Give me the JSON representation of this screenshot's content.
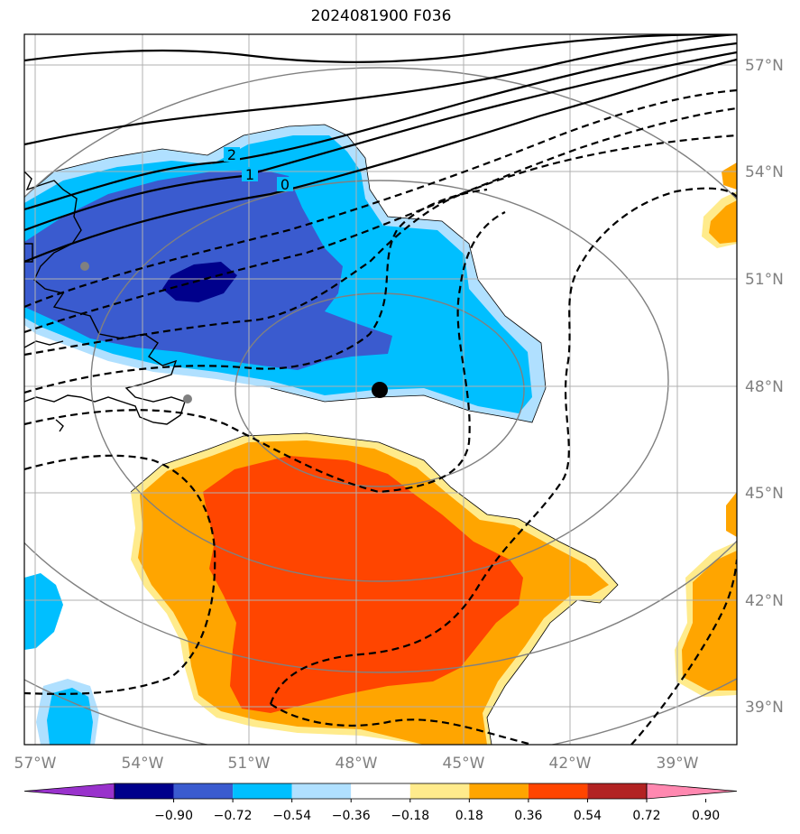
{
  "title": "2024081900 F036",
  "map": {
    "projection": "lambert-like",
    "longitude_labels": [
      "57°W",
      "54°W",
      "51°W",
      "48°W",
      "45°W",
      "42°W",
      "39°W"
    ],
    "latitude_labels": [
      "57°N",
      "54°N",
      "51°N",
      "48°N",
      "45°N",
      "42°N",
      "39°N"
    ],
    "center_marker": {
      "lon": -47.3,
      "lat": 48.0,
      "color": "#000000"
    },
    "grey_markers": [
      {
        "name": "st-johns-area"
      },
      {
        "name": "avalon-area"
      }
    ],
    "contour_labels": [
      "2",
      "1",
      "0"
    ]
  },
  "colorbar": {
    "ticks": [
      "−0.90",
      "−0.72",
      "−0.54",
      "−0.36",
      "−0.18",
      "0.18",
      "0.36",
      "0.54",
      "0.72",
      "0.90"
    ],
    "colors": [
      "#9932CC",
      "#00008B",
      "#3A5BCF",
      "#00BFFF",
      "#B0E0FF",
      "#FFFFFF",
      "#FFEB8C",
      "#FFA500",
      "#FF4500",
      "#B22222",
      "#FF88B0"
    ]
  }
}
